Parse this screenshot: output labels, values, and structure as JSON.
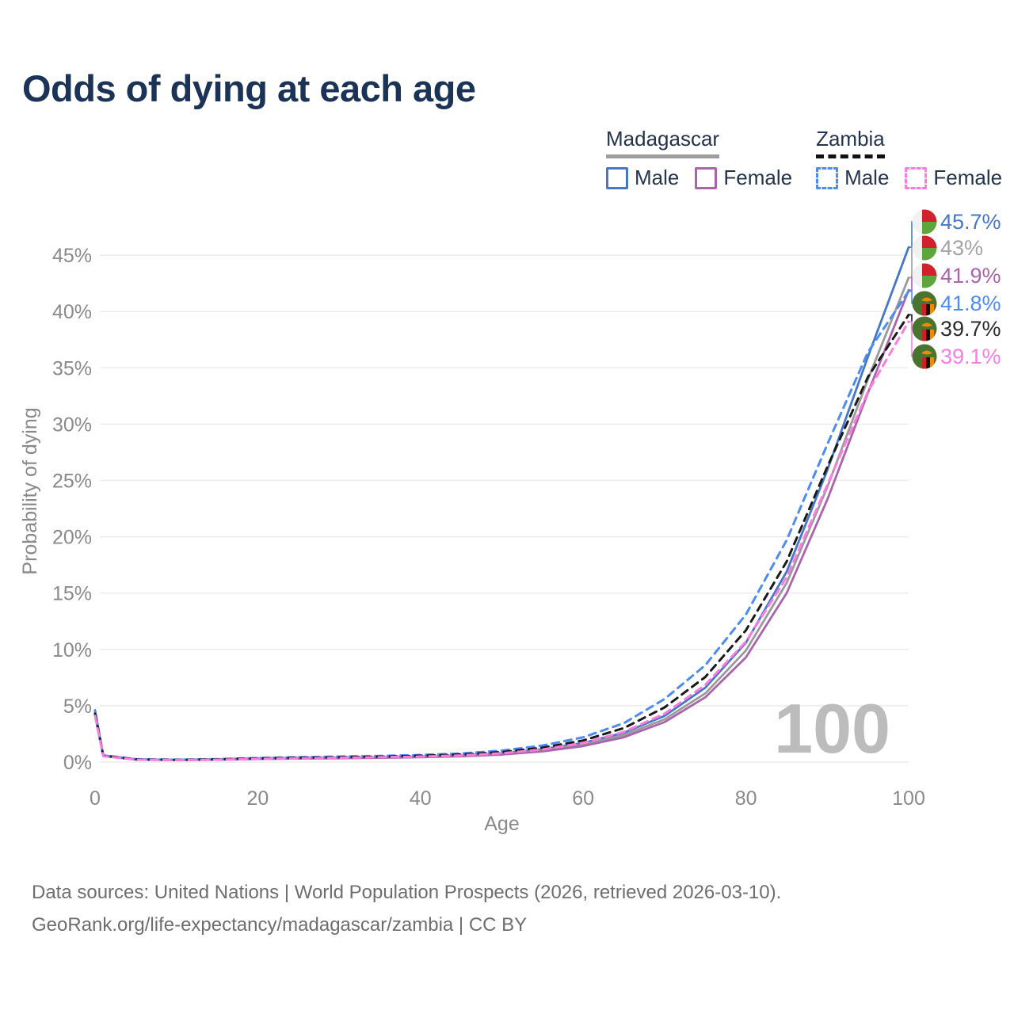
{
  "title": "Odds of dying at each age",
  "legend": {
    "groups": [
      {
        "label": "Madagascar",
        "line_style": "solid",
        "underline_color": "#9e9e9e",
        "items": [
          {
            "label": "Male",
            "color": "#4677c8"
          },
          {
            "label": "Female",
            "color": "#a964ad"
          }
        ]
      },
      {
        "label": "Zambia",
        "line_style": "dashed",
        "underline_color": "#111111",
        "items": [
          {
            "label": "Male",
            "color": "#4d8bf5"
          },
          {
            "label": "Female",
            "color": "#ff7bdf"
          }
        ]
      }
    ]
  },
  "watermark": "100",
  "footer": {
    "line1": "Data sources: United Nations | World Population Prospects (2026, retrieved 2026-03-10).",
    "line2": "GeoRank.org/life-expectancy/madagascar/zambia | CC BY"
  },
  "chart_data": {
    "type": "line",
    "title": "Odds of dying at each age",
    "xlabel": "Age",
    "ylabel": "Probability of dying",
    "xlim": [
      0,
      100
    ],
    "ylim": [
      0,
      47
    ],
    "grid": "horizontal",
    "legend_position": "top-right",
    "xticks": [
      {
        "value": 0,
        "label": "0"
      },
      {
        "value": 20,
        "label": "20"
      },
      {
        "value": 40,
        "label": "40"
      },
      {
        "value": 60,
        "label": "60"
      },
      {
        "value": 80,
        "label": "80"
      },
      {
        "value": 100,
        "label": "100"
      }
    ],
    "yticks": [
      {
        "value": 0,
        "label": "0%"
      },
      {
        "value": 5,
        "label": "5%"
      },
      {
        "value": 10,
        "label": "10%"
      },
      {
        "value": 15,
        "label": "15%"
      },
      {
        "value": 20,
        "label": "20%"
      },
      {
        "value": 25,
        "label": "25%"
      },
      {
        "value": 30,
        "label": "30%"
      },
      {
        "value": 35,
        "label": "35%"
      },
      {
        "value": 40,
        "label": "40%"
      },
      {
        "value": 45,
        "label": "45%"
      }
    ],
    "x": [
      0,
      1,
      5,
      10,
      15,
      20,
      25,
      30,
      35,
      40,
      45,
      50,
      55,
      60,
      65,
      70,
      75,
      80,
      85,
      90,
      95,
      100
    ],
    "series": [
      {
        "name": "Madagascar Male",
        "country": "Madagascar",
        "sex": "Male",
        "flag": "madagascar",
        "color": "#4677c8",
        "dash": "solid",
        "end_label": "45.7%",
        "label_color": "#4677c8",
        "values": [
          4.6,
          0.6,
          0.25,
          0.2,
          0.25,
          0.33,
          0.37,
          0.4,
          0.44,
          0.5,
          0.61,
          0.8,
          1.15,
          1.7,
          2.6,
          4.1,
          6.6,
          10.6,
          16.9,
          25.9,
          36.0,
          45.7
        ]
      },
      {
        "name": "Madagascar Both sexes",
        "country": "Madagascar",
        "sex": "Both",
        "flag": "madagascar",
        "color": "#9a9a9a",
        "dash": "solid",
        "end_label": "43%",
        "label_color": "#a3a3a3",
        "values": [
          4.4,
          0.57,
          0.24,
          0.19,
          0.23,
          0.3,
          0.34,
          0.37,
          0.41,
          0.46,
          0.56,
          0.73,
          1.05,
          1.55,
          2.4,
          3.8,
          6.1,
          9.9,
          15.9,
          24.4,
          34.0,
          43.0
        ]
      },
      {
        "name": "Madagascar Female",
        "country": "Madagascar",
        "sex": "Female",
        "flag": "madagascar",
        "color": "#a964ad",
        "dash": "solid",
        "end_label": "41.9%",
        "label_color": "#a964ad",
        "values": [
          4.2,
          0.54,
          0.22,
          0.18,
          0.21,
          0.27,
          0.31,
          0.34,
          0.38,
          0.43,
          0.51,
          0.67,
          0.95,
          1.42,
          2.2,
          3.55,
          5.75,
          9.3,
          15.0,
          23.3,
          32.8,
          41.9
        ]
      },
      {
        "name": "Zambia Male",
        "country": "Zambia",
        "sex": "Male",
        "flag": "zambia",
        "color": "#4d8bf5",
        "dash": "dashed",
        "end_label": "41.8%",
        "label_color": "#4d8bf5",
        "values": [
          4.5,
          0.6,
          0.26,
          0.21,
          0.26,
          0.36,
          0.43,
          0.49,
          0.55,
          0.63,
          0.77,
          1.02,
          1.47,
          2.2,
          3.45,
          5.6,
          8.6,
          13.1,
          19.7,
          28.2,
          36.4,
          41.8
        ]
      },
      {
        "name": "Zambia Both sexes",
        "country": "Zambia",
        "sex": "Both",
        "flag": "zambia",
        "color": "#1a1a1a",
        "dash": "dashed",
        "end_label": "39.7%",
        "label_color": "#2b2b2b",
        "values": [
          4.3,
          0.56,
          0.24,
          0.19,
          0.24,
          0.32,
          0.38,
          0.43,
          0.48,
          0.56,
          0.67,
          0.89,
          1.28,
          1.92,
          3.02,
          4.85,
          7.55,
          11.7,
          17.8,
          26.2,
          34.2,
          39.7
        ]
      },
      {
        "name": "Zambia Female",
        "country": "Zambia",
        "sex": "Female",
        "flag": "zambia",
        "color": "#ff7bdf",
        "dash": "dashed",
        "end_label": "39.1%",
        "label_color": "#fb7ce4",
        "values": [
          4.1,
          0.52,
          0.22,
          0.17,
          0.21,
          0.28,
          0.33,
          0.38,
          0.43,
          0.49,
          0.59,
          0.78,
          1.12,
          1.7,
          2.68,
          4.3,
          6.85,
          10.7,
          16.4,
          24.6,
          32.9,
          39.1
        ]
      }
    ]
  },
  "flag_colors": {
    "madagascar": {
      "white": "#f1f1f1",
      "red": "#d2202c",
      "green": "#5ea53c"
    },
    "zambia": {
      "green": "#49742f",
      "red": "#d01e26",
      "black": "#101010",
      "orange": "#f08a00"
    }
  }
}
